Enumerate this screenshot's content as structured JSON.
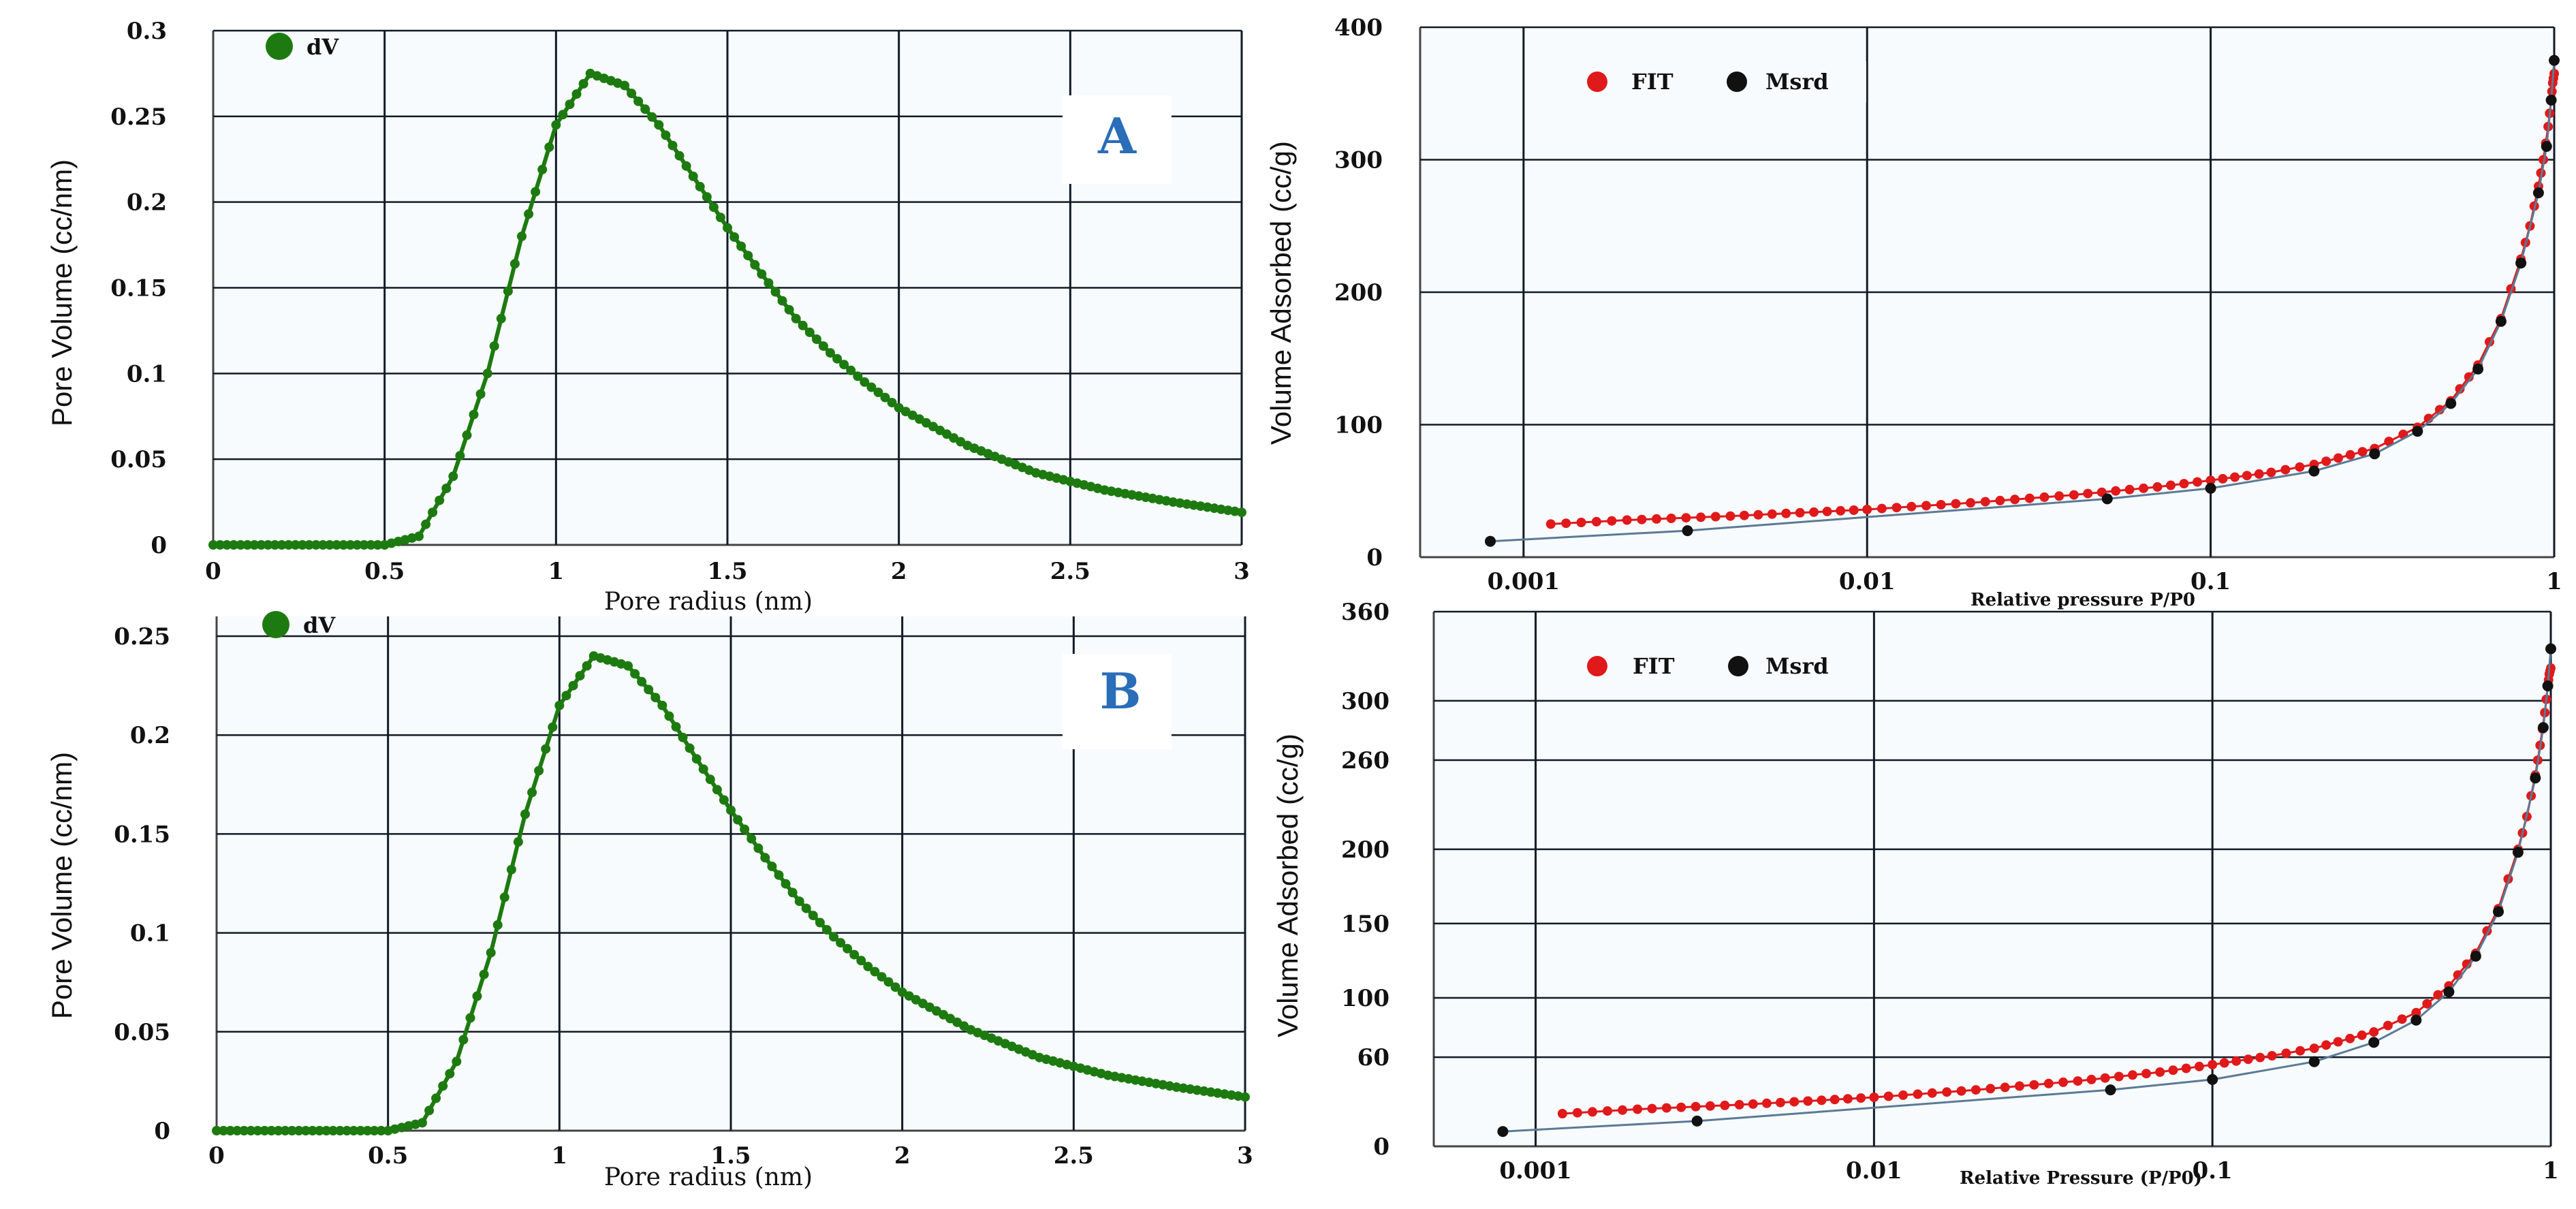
{
  "chart_data": [
    {
      "panel": "A",
      "type": "line",
      "title": "",
      "xlabel": "Pore radius  (nm)",
      "ylabel": "Pore Volume (cc/nm)",
      "xlim": [
        0,
        3
      ],
      "ylim": [
        0,
        0.3
      ],
      "xticks": [
        "0",
        "0.5",
        "1",
        "1.5",
        "2",
        "2.5",
        "3"
      ],
      "yticks": [
        "0",
        "0.05",
        "0.1",
        "0.15",
        "0.2",
        "0.25",
        "0.3"
      ],
      "legend": [
        "dV"
      ],
      "series": [
        {
          "name": "dV",
          "color": "#1d7a10",
          "x": [
            0,
            0.5,
            0.6,
            0.7,
            0.8,
            0.9,
            1.0,
            1.1,
            1.2,
            1.3,
            1.4,
            1.5,
            1.6,
            1.7,
            1.8,
            1.9,
            2.0,
            2.2,
            2.4,
            2.6,
            2.8,
            3.0
          ],
          "values": [
            0,
            0,
            0.005,
            0.04,
            0.1,
            0.18,
            0.245,
            0.275,
            0.268,
            0.245,
            0.215,
            0.185,
            0.158,
            0.132,
            0.112,
            0.095,
            0.08,
            0.058,
            0.042,
            0.032,
            0.025,
            0.019
          ]
        }
      ]
    },
    {
      "panel": "A-isotherm",
      "type": "scatter",
      "title": "",
      "xscale": "log",
      "xlabel": "Relative pressure P/P0",
      "ylabel": "Volume Adsorbed (cc/g)",
      "xlim": [
        0.0005,
        1
      ],
      "ylim": [
        0,
        400
      ],
      "xticks": [
        "0.001",
        "0.01",
        "0.1",
        "1"
      ],
      "yticks": [
        "0",
        "100",
        "200",
        "300",
        "400"
      ],
      "legend": [
        "FIT",
        "Msrd"
      ],
      "series": [
        {
          "name": "FIT",
          "color": "#e0191b",
          "x": [
            0.0012,
            0.002,
            0.004,
            0.007,
            0.01,
            0.02,
            0.04,
            0.07,
            0.1,
            0.15,
            0.2,
            0.3,
            0.4,
            0.5,
            0.6,
            0.7,
            0.8,
            0.85,
            0.9,
            0.93,
            0.96,
            0.98,
            0.99,
            1.0
          ],
          "values": [
            25,
            28,
            31,
            34,
            36,
            41,
            47,
            53,
            58,
            64,
            70,
            82,
            98,
            118,
            145,
            180,
            225,
            250,
            280,
            300,
            325,
            345,
            358,
            365
          ]
        },
        {
          "name": "Msrd",
          "color": "#111111",
          "x": [
            0.0008,
            0.003,
            0.05,
            0.1,
            0.2,
            0.3,
            0.4,
            0.5,
            0.6,
            0.7,
            0.8,
            0.9,
            0.95,
            0.98,
            1.0
          ],
          "values": [
            12,
            20,
            44,
            52,
            65,
            78,
            95,
            116,
            142,
            178,
            222,
            275,
            310,
            345,
            375
          ]
        }
      ]
    },
    {
      "panel": "B",
      "type": "line",
      "title": "",
      "xlabel": "Pore radius  (nm)",
      "ylabel": "Pore Volume (cc/nm)",
      "xlim": [
        0,
        3
      ],
      "ylim": [
        0,
        0.26
      ],
      "xticks": [
        "0",
        "0.5",
        "1",
        "1.5",
        "2",
        "2.5",
        "3"
      ],
      "yticks": [
        "0",
        "0.05",
        "0.1",
        "0.15",
        "0.2",
        "0.25"
      ],
      "legend": [
        "dV"
      ],
      "series": [
        {
          "name": "dV",
          "color": "#1d7a10",
          "x": [
            0,
            0.5,
            0.6,
            0.7,
            0.8,
            0.9,
            1.0,
            1.1,
            1.2,
            1.3,
            1.4,
            1.5,
            1.6,
            1.7,
            1.8,
            1.9,
            2.0,
            2.2,
            2.4,
            2.6,
            2.8,
            3.0
          ],
          "values": [
            0,
            0,
            0.004,
            0.035,
            0.09,
            0.16,
            0.215,
            0.24,
            0.235,
            0.215,
            0.188,
            0.162,
            0.138,
            0.116,
            0.098,
            0.083,
            0.07,
            0.051,
            0.037,
            0.028,
            0.022,
            0.017
          ]
        }
      ]
    },
    {
      "panel": "B-isotherm",
      "type": "scatter",
      "title": "",
      "xscale": "log",
      "xlabel": "Relative Pressure (P/P0)",
      "ylabel": "Volume Adsorbed (cc/g)",
      "xlim": [
        0.0005,
        1
      ],
      "ylim": [
        0,
        360
      ],
      "xticks": [
        "0.001",
        "0.01",
        "0.1",
        "1"
      ],
      "yticks": [
        "0",
        "60",
        "100",
        "150",
        "200",
        "260",
        "300",
        "360"
      ],
      "legend": [
        "FIT",
        "Msrd"
      ],
      "series": [
        {
          "name": "FIT",
          "color": "#e0191b",
          "x": [
            0.0012,
            0.002,
            0.004,
            0.007,
            0.01,
            0.02,
            0.04,
            0.07,
            0.1,
            0.15,
            0.2,
            0.3,
            0.4,
            0.5,
            0.6,
            0.7,
            0.8,
            0.85,
            0.9,
            0.93,
            0.96,
            0.98,
            0.99,
            1.0
          ],
          "values": [
            22,
            25,
            28,
            31,
            33,
            38,
            44,
            50,
            55,
            61,
            66,
            77,
            90,
            108,
            130,
            160,
            200,
            222,
            250,
            270,
            292,
            310,
            318,
            322
          ]
        },
        {
          "name": "Msrd",
          "color": "#111111",
          "x": [
            0.0008,
            0.003,
            0.05,
            0.1,
            0.2,
            0.3,
            0.4,
            0.5,
            0.6,
            0.7,
            0.8,
            0.9,
            0.95,
            0.98,
            1.0
          ],
          "values": [
            10,
            17,
            38,
            45,
            57,
            70,
            85,
            104,
            128,
            158,
            198,
            248,
            282,
            310,
            335
          ]
        }
      ]
    }
  ]
}
